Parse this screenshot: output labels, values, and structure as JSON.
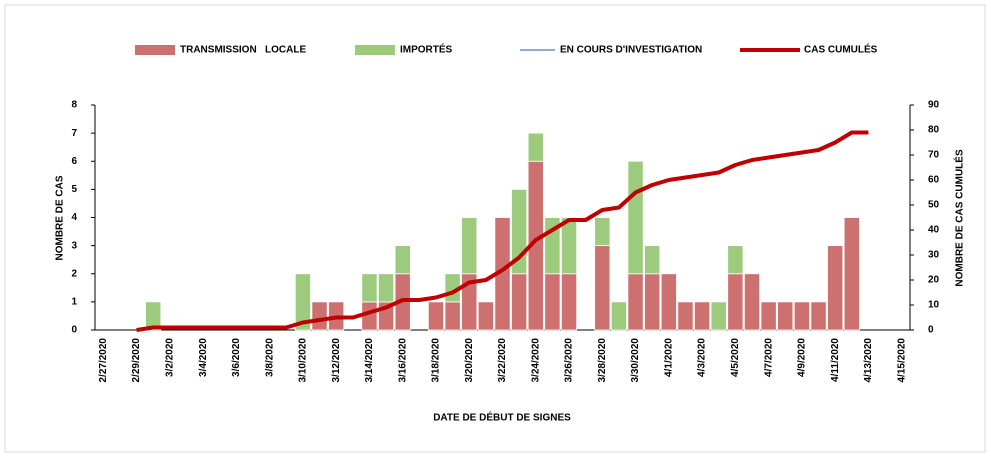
{
  "chart_data": {
    "type": "bar",
    "stacked": true,
    "legend": "top",
    "x_label": "DATE DE DÉBUT DE SIGNES",
    "y_label": "NOMBRE DE CAS",
    "y2_label": "NOMBRE DE CAS CUMULÉS",
    "categories": [
      "2/27/2020",
      null,
      "2/29/2020",
      null,
      "3/2/2020",
      null,
      "3/4/2020",
      null,
      "3/6/2020",
      null,
      "3/8/2020",
      null,
      "3/10/2020",
      null,
      "3/12/2020",
      null,
      "3/14/2020",
      null,
      "3/16/2020",
      null,
      "3/18/2020",
      null,
      "3/20/2020",
      null,
      "3/22/2020",
      null,
      "3/24/2020",
      null,
      "3/26/2020",
      null,
      "3/28/2020",
      null,
      "3/30/2020",
      null,
      "4/1/2020",
      null,
      "4/3/2020",
      null,
      "4/5/2020",
      null,
      "4/7/2020",
      null,
      "4/9/2020",
      null,
      "4/11/2020",
      null,
      "4/13/2020",
      null,
      "4/15/2020"
    ],
    "series": [
      {
        "name": "TRANSMISSION   LOCALE",
        "color": "#cd7070",
        "type": "bar",
        "values": [
          0,
          0,
          0,
          0,
          0,
          0,
          0,
          0,
          0,
          0,
          0,
          0,
          0,
          1,
          1,
          0,
          1,
          1,
          2,
          0,
          1,
          1,
          2,
          1,
          4,
          2,
          6,
          2,
          2,
          0,
          3,
          0,
          2,
          2,
          2,
          1,
          1,
          0,
          2,
          2,
          1,
          1,
          1,
          1,
          3,
          4,
          0,
          0,
          0
        ]
      },
      {
        "name": "IMPORTÉS",
        "color": "#9dcb7e",
        "type": "bar",
        "values": [
          0,
          0,
          0,
          1,
          0,
          0,
          0,
          0,
          0,
          0,
          0,
          0,
          2,
          0,
          0,
          0,
          1,
          1,
          1,
          0,
          0,
          1,
          2,
          0,
          0,
          3,
          1,
          2,
          2,
          0,
          1,
          1,
          4,
          1,
          0,
          0,
          0,
          1,
          1,
          0,
          0,
          0,
          0,
          0,
          0,
          0,
          0,
          0,
          0
        ]
      },
      {
        "name": "EN COURS D'INVESTIGATION",
        "color": "#8eaadb",
        "type": "bar",
        "values": [
          0,
          0,
          0,
          0,
          0,
          0,
          0,
          0,
          0,
          0,
          0,
          0,
          0,
          0,
          0,
          0,
          0,
          0,
          0,
          0,
          0,
          0,
          0,
          0,
          0,
          0,
          0,
          0,
          0,
          0,
          0,
          0,
          0,
          0,
          0,
          0,
          0,
          0,
          0,
          0,
          0,
          0,
          0,
          0,
          0,
          0,
          0,
          0,
          0
        ]
      },
      {
        "name": "CAS CUMULÉS",
        "color": "#c00000",
        "type": "line",
        "axis": "y2",
        "values": [
          null,
          null,
          0,
          1,
          1,
          1,
          1,
          1,
          1,
          1,
          1,
          1,
          3,
          4,
          5,
          5,
          7,
          9,
          12,
          12,
          13,
          15,
          19,
          20,
          24,
          29,
          36,
          40,
          44,
          44,
          48,
          49,
          55,
          58,
          60,
          61,
          62,
          63,
          66,
          68,
          69,
          70,
          71,
          72,
          75,
          79,
          79,
          null,
          null
        ]
      }
    ],
    "ylim": [
      0,
      8
    ],
    "yticks": [
      0,
      1,
      2,
      3,
      4,
      5,
      6,
      7,
      8
    ],
    "y2lim": [
      0,
      90
    ],
    "y2ticks": [
      0,
      10,
      20,
      30,
      40,
      50,
      60,
      70,
      80,
      90
    ]
  }
}
